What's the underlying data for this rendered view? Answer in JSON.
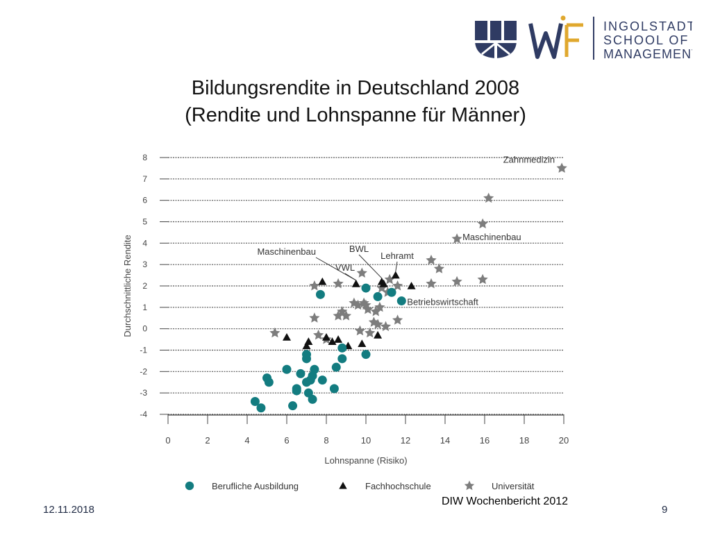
{
  "header": {
    "logo_line1": "INGOLSTADT",
    "logo_line2": "SCHOOL OF",
    "logo_line3": "MANAGEMENT",
    "colors": {
      "navy": "#2f3b63",
      "gold": "#e0a82e"
    }
  },
  "title_line1": "Bildungsrendite in Deutschland 2008",
  "title_line2": "(Rendite und Lohnspanne für Männer)",
  "footer": {
    "date": "12.11.2018",
    "page": "9",
    "source": "DIW Wochenbericht 2012"
  },
  "chart_data": {
    "type": "scatter",
    "xlabel": "Lohnspanne (Risiko)",
    "ylabel": "Durchschnittliche Rendite",
    "xlim": [
      0,
      20
    ],
    "ylim": [
      -4,
      8
    ],
    "xticks": [
      "0",
      "2",
      "4",
      "6",
      "8",
      "10",
      "12",
      "14",
      "16",
      "18",
      "20"
    ],
    "yticks": [
      "8",
      "7",
      "6",
      "5",
      "4",
      "3",
      "2",
      "1",
      "0",
      "-1",
      "-2",
      "-3",
      "-4"
    ],
    "grid": true,
    "legend_position": "bottom",
    "series": [
      {
        "name": "Berufliche Ausbildung",
        "marker": "circle",
        "color": "#137c80",
        "points": [
          [
            4.4,
            -3.4
          ],
          [
            4.7,
            -3.7
          ],
          [
            5.0,
            -2.3
          ],
          [
            5.1,
            -2.5
          ],
          [
            6.0,
            -1.9
          ],
          [
            6.3,
            -3.6
          ],
          [
            6.5,
            -2.9
          ],
          [
            6.5,
            -2.8
          ],
          [
            6.7,
            -2.1
          ],
          [
            7.0,
            -2.5
          ],
          [
            7.0,
            -1.4
          ],
          [
            7.0,
            -1.2
          ],
          [
            7.1,
            -3.0
          ],
          [
            7.2,
            -2.4
          ],
          [
            7.3,
            -3.3
          ],
          [
            7.3,
            -2.2
          ],
          [
            7.4,
            -1.9
          ],
          [
            7.7,
            1.6
          ],
          [
            7.8,
            -2.4
          ],
          [
            8.4,
            -2.8
          ],
          [
            8.5,
            -1.8
          ],
          [
            8.8,
            -0.9
          ],
          [
            8.8,
            -1.4
          ],
          [
            10.0,
            -1.2
          ],
          [
            10.0,
            1.9
          ],
          [
            10.6,
            1.5
          ],
          [
            11.3,
            1.7
          ],
          [
            11.8,
            1.3
          ]
        ]
      },
      {
        "name": "Fachhochschule",
        "marker": "triangle",
        "color": "#111111",
        "points": [
          [
            6.0,
            -0.4
          ],
          [
            7.0,
            -0.8
          ],
          [
            7.1,
            -0.6
          ],
          [
            7.8,
            2.2
          ],
          [
            8.0,
            -0.4
          ],
          [
            8.3,
            -0.6
          ],
          [
            8.6,
            -0.5
          ],
          [
            9.1,
            -0.8
          ],
          [
            9.5,
            2.1
          ],
          [
            9.8,
            -0.7
          ],
          [
            10.6,
            -0.3
          ],
          [
            10.8,
            2.2
          ],
          [
            10.9,
            2.1
          ],
          [
            11.5,
            2.5
          ],
          [
            12.3,
            2.0
          ]
        ]
      },
      {
        "name": "Universität",
        "marker": "star",
        "color": "#7d7d7d",
        "points": [
          [
            5.4,
            -0.2
          ],
          [
            7.4,
            0.5
          ],
          [
            7.4,
            2.0
          ],
          [
            7.6,
            -0.3
          ],
          [
            8.0,
            -0.5
          ],
          [
            8.6,
            0.6
          ],
          [
            8.6,
            2.1
          ],
          [
            8.8,
            0.8
          ],
          [
            9.0,
            0.6
          ],
          [
            9.4,
            1.2
          ],
          [
            9.6,
            1.1
          ],
          [
            9.7,
            -0.1
          ],
          [
            9.8,
            2.6
          ],
          [
            9.9,
            1.2
          ],
          [
            10.0,
            1.1
          ],
          [
            10.1,
            0.9
          ],
          [
            10.2,
            -0.2
          ],
          [
            10.4,
            0.3
          ],
          [
            10.5,
            0.8
          ],
          [
            10.6,
            0.2
          ],
          [
            10.7,
            1.0
          ],
          [
            10.8,
            1.9
          ],
          [
            11.0,
            0.1
          ],
          [
            11.1,
            1.7
          ],
          [
            11.2,
            2.3
          ],
          [
            11.6,
            0.4
          ],
          [
            11.6,
            2.0
          ],
          [
            13.3,
            3.2
          ],
          [
            13.3,
            2.1
          ],
          [
            13.7,
            2.8
          ],
          [
            14.6,
            4.2
          ],
          [
            14.6,
            2.2
          ],
          [
            15.9,
            4.9
          ],
          [
            15.9,
            2.3
          ],
          [
            16.2,
            6.1
          ],
          [
            19.9,
            7.5
          ]
        ]
      }
    ],
    "annotations": [
      {
        "text": "Zahnmedizin",
        "x": 19.9,
        "y": 7.5
      },
      {
        "text": "Maschinenbau",
        "x": 14.6,
        "y": 4.2
      },
      {
        "text": "Betriebswirtschaft",
        "x": 11.8,
        "y": 1.3
      },
      {
        "text": "Maschinenbau",
        "x": 9.5,
        "y": 2.1
      },
      {
        "text": "BWL",
        "x": 10.8,
        "y": 2.2
      },
      {
        "text": "Lehramt",
        "x": 11.5,
        "y": 2.5
      },
      {
        "text": "VWL",
        "x": 9.5,
        "y": 2.1
      }
    ]
  }
}
